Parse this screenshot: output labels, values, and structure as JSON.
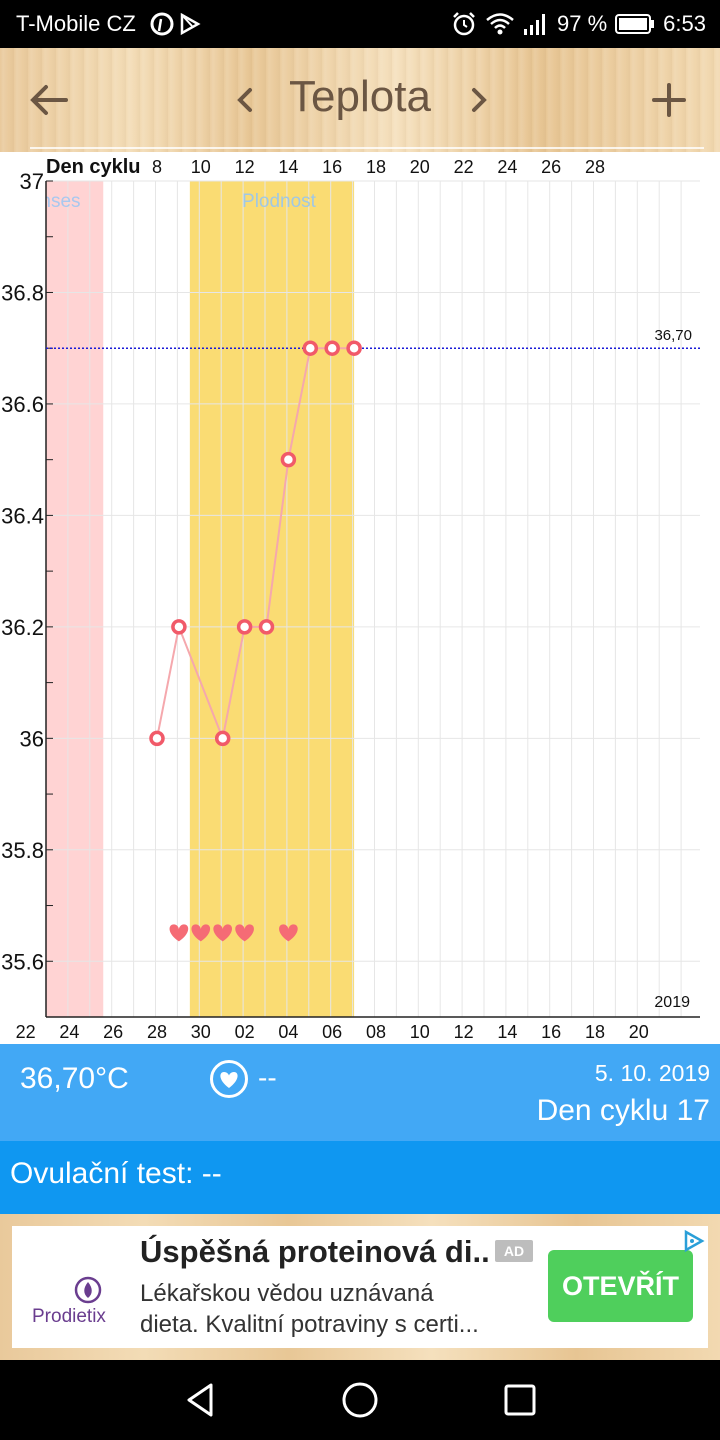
{
  "status_bar": {
    "carrier": "T-Mobile CZ",
    "battery": "97 %",
    "time": "6:53",
    "icons": [
      "pinterest-icon",
      "play-store-icon",
      "alarm-icon",
      "wifi-icon",
      "signal-icon",
      "battery-icon"
    ]
  },
  "app_bar": {
    "title": "Teplota",
    "icons": [
      "back-arrow-icon",
      "prev-chevron-icon",
      "next-chevron-icon",
      "add-icon"
    ],
    "color": "#6b5643"
  },
  "chart_data": {
    "type": "scatter",
    "xlabel": "Den cyklu",
    "top_ticks": [
      "8",
      "10",
      "12",
      "14",
      "16",
      "18",
      "20",
      "22",
      "24",
      "26",
      "28"
    ],
    "bottom_ticks": [
      "22",
      "24",
      "26",
      "28",
      "30",
      "02",
      "04",
      "06",
      "08",
      "10",
      "12",
      "14",
      "16",
      "18",
      "20"
    ],
    "ylim": [
      35.5,
      37.0
    ],
    "y_tick_labels": [
      "37",
      "36.8",
      "36.6",
      "36.4",
      "36.2",
      "36",
      "35.8",
      "35.6"
    ],
    "bands": [
      {
        "label": "Menses",
        "color": "#ffd3d3",
        "label_color": "#a8c8ef"
      },
      {
        "label": "Plodnost",
        "color": "#fadc73",
        "label_color": "#a0c8e4"
      }
    ],
    "series": [
      {
        "cycle_days": [
          8,
          9,
          10,
          11,
          12,
          13,
          14,
          15,
          16,
          17
        ],
        "values": [
          36.0,
          36.2,
          null,
          36.0,
          36.2,
          36.2,
          36.5,
          36.7,
          36.7,
          36.7
        ],
        "color": "#f15a69",
        "line_color": "#f5a8ad"
      }
    ],
    "reference_line": {
      "value": 36.7,
      "label": "36,70",
      "color": "#1a1ad8"
    },
    "intercourse_days": [
      9,
      10,
      11,
      12,
      14
    ],
    "heart_color": "#f56b75",
    "year_label": "2019",
    "grid": true
  },
  "info": {
    "temperature": "36,70°C",
    "sex_value": "--",
    "date": "5. 10. 2019",
    "cycle_day": "Den cyklu 17",
    "bg": "#42a8f5"
  },
  "ovulation": {
    "label": "Ovulační test: --",
    "bg": "#0f97f1"
  },
  "ad": {
    "brand": "Prodietix",
    "headline": "Úspěšná proteinová di...",
    "badge": "AD",
    "body_line1": "Lékařskou vědou uznávaná",
    "body_line2": "dieta. Kvalitní potraviny s certi...",
    "cta": "OTEVŘÍT"
  },
  "nav_bar": {
    "icons": [
      "back-triangle-icon",
      "home-circle-icon",
      "recents-square-icon"
    ]
  }
}
